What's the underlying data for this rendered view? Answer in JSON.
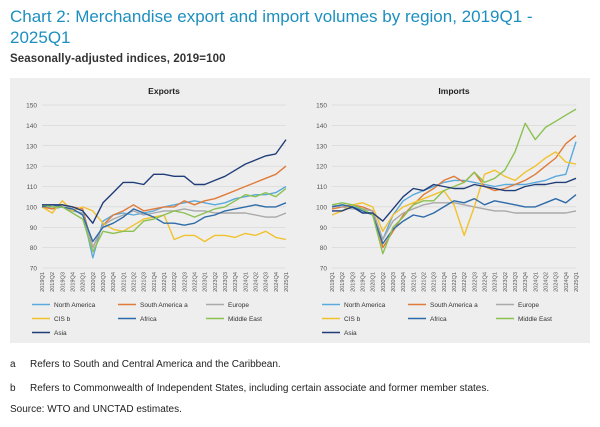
{
  "title": "Chart 2: Merchandise export and import volumes by region, 2019Q1 - 2025Q1",
  "subtitle": "Seasonally-adjusted indices, 2019=100",
  "notes": [
    {
      "label": "a",
      "text": "Refers to South and Central America and the Caribbean."
    },
    {
      "label": "b",
      "text": "Refers to Commonwealth of Independent States, including certain associate and former member states."
    }
  ],
  "source": "Source: WTO and UNCTAD estimates.",
  "colors": {
    "North America": "#5aa9dc",
    "South America a": "#e07b39",
    "Europe": "#a9a9a9",
    "CIS b": "#f2c12e",
    "Africa": "#2e6ba8",
    "Middle East": "#8cc152",
    "Asia": "#1f3d78"
  },
  "chart_data": [
    {
      "type": "line",
      "title": "Exports",
      "categories": [
        "2019Q1",
        "2019Q2",
        "2019Q3",
        "2019Q4",
        "2020Q1",
        "2020Q2",
        "2020Q3",
        "2020Q4",
        "2021Q1",
        "2021Q2",
        "2021Q3",
        "2021Q4",
        "2022Q1",
        "2022Q2",
        "2022Q3",
        "2022Q4",
        "2023Q1",
        "2023Q2",
        "2023Q3",
        "2023Q4",
        "2024Q1",
        "2024Q2",
        "2024Q3",
        "2024Q4",
        "2025Q1"
      ],
      "ylim": [
        70,
        150
      ],
      "yticks": [
        70,
        80,
        90,
        100,
        110,
        120,
        130,
        140,
        150
      ],
      "grid": true,
      "legend": "bottom",
      "series": [
        {
          "name": "North America",
          "values": [
            101,
            99,
            100,
            98,
            97,
            75,
            93,
            96,
            97,
            96,
            97,
            98,
            100,
            101,
            102,
            103,
            102,
            101,
            102,
            104,
            105,
            106,
            106,
            107,
            110
          ]
        },
        {
          "name": "South America a",
          "values": [
            100,
            99,
            101,
            100,
            99,
            80,
            91,
            96,
            98,
            101,
            98,
            99,
            100,
            100,
            103,
            101,
            103,
            104,
            106,
            108,
            110,
            112,
            114,
            116,
            120
          ]
        },
        {
          "name": "Europe",
          "values": [
            101,
            100,
            100,
            98,
            97,
            80,
            91,
            94,
            96,
            98,
            96,
            97,
            98,
            98,
            99,
            98,
            98,
            97,
            97,
            97,
            97,
            96,
            95,
            95,
            97
          ]
        },
        {
          "name": "CIS b",
          "values": [
            100,
            97,
            103,
            98,
            100,
            98,
            92,
            89,
            88,
            91,
            94,
            95,
            96,
            84,
            86,
            86,
            83,
            86,
            86,
            85,
            87,
            86,
            88,
            85,
            84
          ]
        },
        {
          "name": "Africa",
          "values": [
            100,
            101,
            100,
            99,
            96,
            83,
            90,
            92,
            95,
            99,
            97,
            95,
            92,
            92,
            91,
            92,
            95,
            96,
            98,
            99,
            100,
            101,
            100,
            100,
            102
          ]
        },
        {
          "name": "Middle East",
          "values": [
            101,
            100,
            100,
            97,
            94,
            78,
            88,
            87,
            88,
            88,
            93,
            94,
            96,
            98,
            97,
            95,
            97,
            99,
            100,
            103,
            106,
            105,
            107,
            105,
            109
          ]
        },
        {
          "name": "Asia",
          "values": [
            101,
            101,
            101,
            100,
            98,
            92,
            102,
            107,
            112,
            112,
            111,
            116,
            116,
            115,
            115,
            111,
            111,
            113,
            115,
            118,
            121,
            123,
            125,
            126,
            133
          ]
        }
      ]
    },
    {
      "type": "line",
      "title": "Imports",
      "categories": [
        "2019Q1",
        "2019Q2",
        "2019Q3",
        "2019Q4",
        "2020Q1",
        "2020Q2",
        "2020Q3",
        "2020Q4",
        "2021Q1",
        "2021Q2",
        "2021Q3",
        "2021Q4",
        "2022Q1",
        "2022Q2",
        "2022Q3",
        "2022Q4",
        "2023Q1",
        "2023Q2",
        "2023Q3",
        "2023Q4",
        "2024Q1",
        "2024Q2",
        "2024Q3",
        "2024Q4",
        "2025Q1"
      ],
      "ylim": [
        70,
        150
      ],
      "yticks": [
        70,
        80,
        90,
        100,
        110,
        120,
        130,
        140,
        150
      ],
      "grid": true,
      "legend": "bottom",
      "series": [
        {
          "name": "North America",
          "values": [
            100,
            101,
            100,
            99,
            98,
            84,
            96,
            103,
            106,
            108,
            110,
            112,
            113,
            113,
            112,
            111,
            110,
            111,
            111,
            111,
            112,
            113,
            115,
            116,
            132
          ]
        },
        {
          "name": "South America a",
          "values": [
            99,
            100,
            101,
            100,
            98,
            80,
            88,
            96,
            101,
            106,
            109,
            113,
            115,
            112,
            117,
            110,
            108,
            109,
            111,
            113,
            116,
            120,
            124,
            131,
            135
          ]
        },
        {
          "name": "Europe",
          "values": [
            101,
            100,
            99,
            99,
            98,
            84,
            93,
            97,
            99,
            101,
            102,
            102,
            102,
            101,
            100,
            99,
            98,
            98,
            97,
            97,
            97,
            97,
            97,
            97,
            98
          ]
        },
        {
          "name": "CIS b",
          "values": [
            96,
            98,
            101,
            102,
            100,
            88,
            96,
            100,
            102,
            104,
            106,
            108,
            101,
            86,
            100,
            116,
            118,
            115,
            113,
            117,
            120,
            124,
            127,
            122,
            121
          ]
        },
        {
          "name": "Africa",
          "values": [
            100,
            101,
            100,
            98,
            96,
            82,
            89,
            93,
            96,
            95,
            97,
            100,
            103,
            102,
            104,
            101,
            103,
            102,
            101,
            100,
            100,
            102,
            104,
            102,
            106
          ]
        },
        {
          "name": "Middle East",
          "values": [
            101,
            102,
            101,
            99,
            96,
            77,
            90,
            95,
            101,
            103,
            103,
            108,
            110,
            112,
            117,
            112,
            114,
            118,
            127,
            141,
            133,
            139,
            142,
            145,
            148
          ]
        },
        {
          "name": "Asia",
          "values": [
            98,
            98,
            100,
            97,
            97,
            93,
            99,
            105,
            109,
            108,
            111,
            110,
            109,
            109,
            111,
            110,
            109,
            108,
            108,
            110,
            111,
            111,
            112,
            112,
            114
          ]
        }
      ]
    }
  ]
}
